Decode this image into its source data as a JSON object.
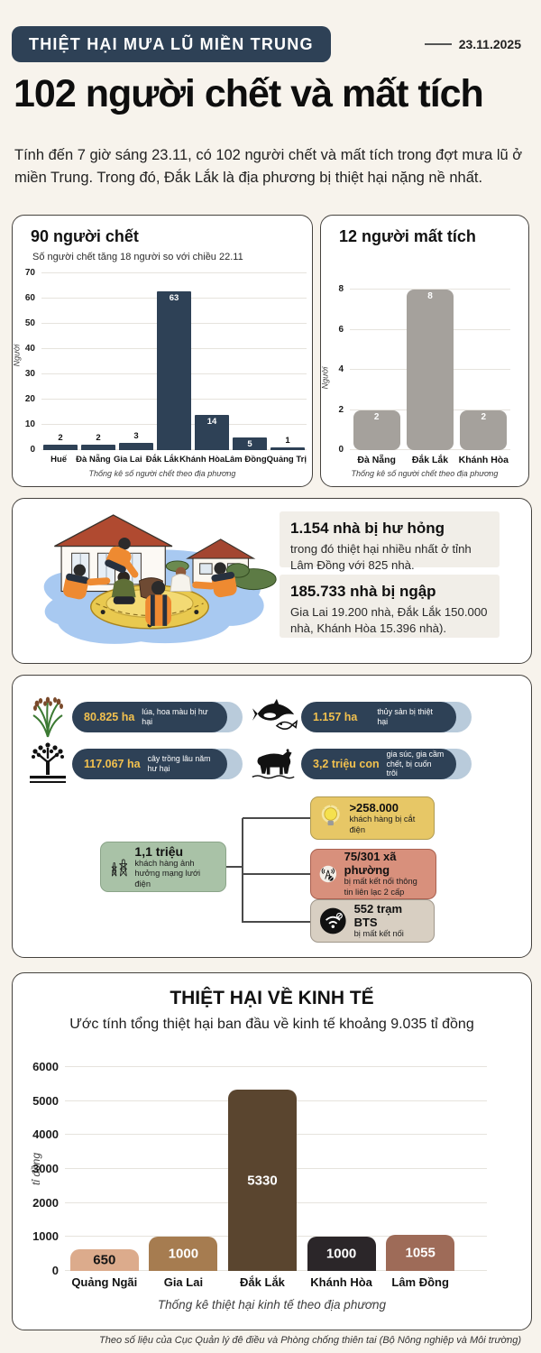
{
  "meta": {
    "badge": "THIỆT HẠI MƯA LŨ MIỀN TRUNG",
    "date": "23.11.2025",
    "title": "102 người chết và mất tích",
    "intro": "Tính đến 7 giờ sáng 23.11, có 102 người chết và mất tích trong đợt mưa lũ ở miền Trung. Trong đó, Đắk Lắk là địa phương bị thiệt hại nặng nề nhất.",
    "source": "Theo số liệu của Cục Quản lý đê điều và Phòng chống thiên tai (Bộ Nông nghiệp và Môi trường)"
  },
  "colors": {
    "navy": "#2e4156",
    "cream_background": "#f7f3ec",
    "gray_bar": "#a5a19c",
    "value_yellow": "#f2c14e",
    "pill_shadow_blue": "#b9cbdb",
    "green_box": "#a9c2a7",
    "yellow_box": "#e7c766",
    "salmon_box": "#d8907c",
    "beige_box": "#d8cfc2"
  },
  "chart_data": [
    {
      "type": "bar",
      "title": "90 người chết",
      "subtitle": "Số người chết tăng 18 người so với chiều 22.11",
      "categories": [
        "Huế",
        "Đà Nẵng",
        "Gia Lai",
        "Đắk Lắk",
        "Khánh Hòa",
        "Lâm Đồng",
        "Quảng Trị"
      ],
      "values": [
        2,
        2,
        3,
        63,
        14,
        5,
        1
      ],
      "bar_color": "#2e4156",
      "xlabel": "",
      "ylabel": "Người",
      "ylim": [
        0,
        70
      ],
      "yticks": [
        0,
        10,
        20,
        30,
        40,
        50,
        60,
        70
      ],
      "grid": true,
      "legend": "none",
      "caption": "Thống kê số người chết theo địa phương"
    },
    {
      "type": "bar",
      "title": "12 người mất tích",
      "subtitle": "",
      "categories": [
        "Đà Nẵng",
        "Đắk Lắk",
        "Khánh Hòa"
      ],
      "values": [
        2,
        8,
        2
      ],
      "bar_color": "#a5a19c",
      "xlabel": "",
      "ylabel": "Người",
      "ylim": [
        0,
        8
      ],
      "yticks": [
        0,
        2,
        4,
        6,
        8
      ],
      "grid": true,
      "legend": "none",
      "caption": "Thống kê số người chết theo địa phương"
    },
    {
      "type": "bar",
      "title": "THIỆT HẠI VỀ KINH TẾ",
      "subtitle": "Ước tính tổng thiệt hại ban đầu về kinh tế khoảng 9.035 tỉ đồng",
      "categories": [
        "Quảng Ngãi",
        "Gia Lai",
        "Đắk Lắk",
        "Khánh Hòa",
        "Lâm Đồng"
      ],
      "values": [
        650,
        1000,
        5330,
        1000,
        1055
      ],
      "bar_colors": [
        "#dcab8c",
        "#a67c50",
        "#5a452f",
        "#2b2629",
        "#9e6b58"
      ],
      "label_colors": [
        "#151515",
        "#ffffff",
        "#ffffff",
        "#ffffff",
        "#ffffff"
      ],
      "xlabel": "",
      "ylabel": "tỉ đồng",
      "ylim": [
        0,
        6000
      ],
      "yticks": [
        0,
        1000,
        2000,
        3000,
        4000,
        5000,
        6000
      ],
      "grid": true,
      "legend": "none",
      "caption": "Thống kê thiệt hại kinh tế theo địa phương"
    }
  ],
  "houses": {
    "damaged_headline": "1.154 nhà bị hư hỏng",
    "damaged_detail": "trong đó thiệt hại nhiều nhất ở tỉnh Lâm Đồng với 825 nhà.",
    "flooded_headline": "185.733 nhà bị ngập",
    "flooded_detail": "Gia Lai 19.200 nhà, Đắk Lắk 150.000 nhà, Khánh Hòa 15.396 nhà)."
  },
  "agriculture": {
    "pills": [
      {
        "icon": "rice-plant",
        "value": "80.825 ha",
        "label": "lúa, hoa màu bị hư hại"
      },
      {
        "icon": "perennial-tree",
        "value": "117.067 ha",
        "label": "cây trồng lâu năm hư hại"
      },
      {
        "icon": "fish",
        "value": "1.157 ha",
        "label": "thủy sản bị thiệt hại"
      },
      {
        "icon": "cow",
        "value": "3,2 triệu con",
        "label": "gia súc, gia cầm chết, bị cuốn trôi"
      }
    ]
  },
  "infrastructure": {
    "power_value": "1,1 triệu",
    "power_label": "khách hàng ảnh hưởng mạng lưới điện",
    "nodes": [
      {
        "icon": "lightbulb",
        "value": ">258.000",
        "label": "khách hàng bị cắt điện"
      },
      {
        "icon": "antenna",
        "value": "75/301 xã phường",
        "label": "bị mất kết nối thông tin liên lạc 2 cấp"
      },
      {
        "icon": "wifi-off",
        "value": "552 trạm BTS",
        "label": "bị mất kết nối"
      }
    ]
  }
}
